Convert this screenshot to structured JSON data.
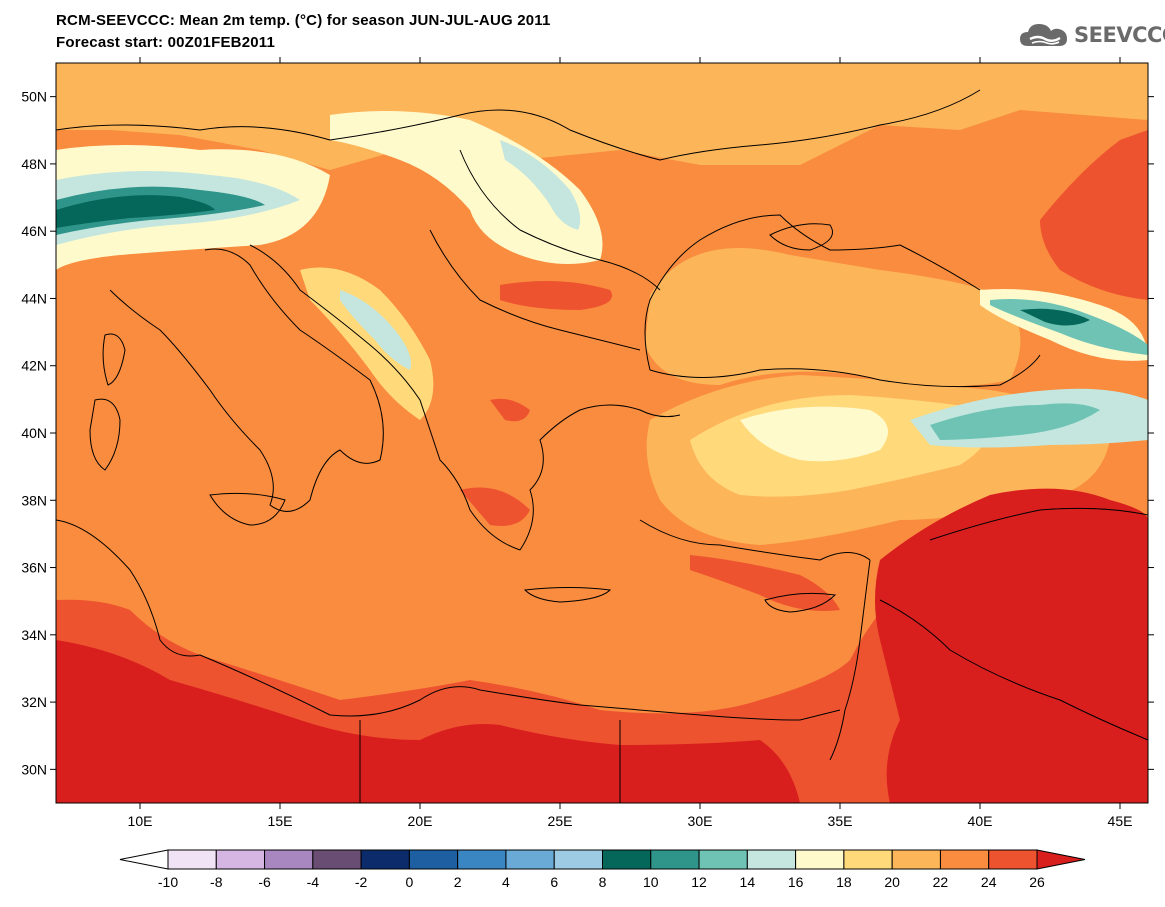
{
  "title": {
    "line1": "RCM-SEEVCCC: Mean 2m temp. (°C) for season JUN-JUL-AUG 2011",
    "line2": "Forecast start: 00Z01FEB2011"
  },
  "logo": {
    "text": "SEEVCCC",
    "icon": "cloud-logo-icon",
    "color": "#6a6a6a"
  },
  "map": {
    "region": "Southeastern Europe, Eastern Mediterranean and Middle East",
    "variable": "Mean 2m temperature",
    "lon_range": [
      7,
      46
    ],
    "lat_range": [
      29,
      51
    ],
    "lat_ticks": [
      {
        "value": 50,
        "label": "50N"
      },
      {
        "value": 48,
        "label": "48N"
      },
      {
        "value": 46,
        "label": "46N"
      },
      {
        "value": 44,
        "label": "44N"
      },
      {
        "value": 42,
        "label": "42N"
      },
      {
        "value": 40,
        "label": "40N"
      },
      {
        "value": 38,
        "label": "38N"
      },
      {
        "value": 36,
        "label": "36N"
      },
      {
        "value": 34,
        "label": "34N"
      },
      {
        "value": 32,
        "label": "32N"
      },
      {
        "value": 30,
        "label": "30N"
      }
    ],
    "lon_ticks": [
      {
        "value": 10,
        "label": "10E"
      },
      {
        "value": 15,
        "label": "15E"
      },
      {
        "value": 20,
        "label": "20E"
      },
      {
        "value": 25,
        "label": "25E"
      },
      {
        "value": 30,
        "label": "30E"
      },
      {
        "value": 35,
        "label": "35E"
      },
      {
        "value": 40,
        "label": "40E"
      },
      {
        "value": 45,
        "label": "45E"
      }
    ]
  },
  "colorbar": {
    "levels": [
      "-10",
      "-8",
      "-6",
      "-4",
      "-2",
      "0",
      "2",
      "4",
      "6",
      "8",
      "10",
      "12",
      "14",
      "16",
      "18",
      "20",
      "22",
      "24",
      "26"
    ],
    "colors": [
      "#ffffff",
      "#efe3f5",
      "#d5b6e3",
      "#a886c0",
      "#6a4d72",
      "#0c2b6a",
      "#1d5fa0",
      "#3a86c2",
      "#69abd6",
      "#9ccbe3",
      "#05665a",
      "#2f9489",
      "#6ec3b4",
      "#c4e6de",
      "#fffacc",
      "#ffd97a",
      "#fdb55a",
      "#f98c3e",
      "#ee5330",
      "#d91e1e"
    ]
  }
}
